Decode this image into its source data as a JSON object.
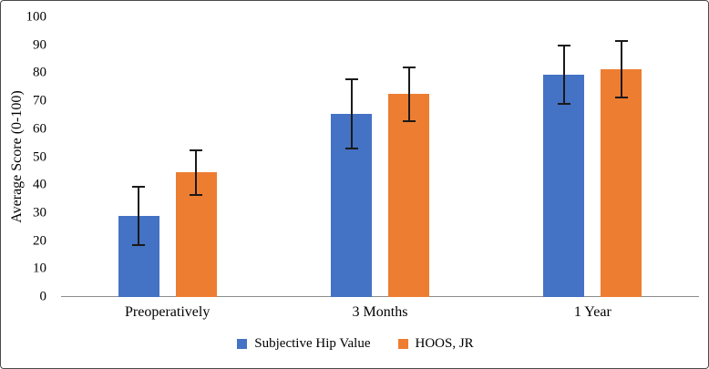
{
  "figure": {
    "background": "#ffffff",
    "border_color": "#4a4a4a"
  },
  "chart_data": {
    "type": "bar",
    "title": "",
    "categories": [
      "Preoperatively",
      "3 Months",
      "1 Year"
    ],
    "series": [
      {
        "name": "Subjective Hip Value",
        "color": "#4472C4",
        "values": [
          29,
          65.5,
          79.5
        ],
        "errors": [
          10.5,
          12.5,
          10.5
        ]
      },
      {
        "name": "HOOS, JR",
        "color": "#ED7D31",
        "values": [
          44.5,
          72.5,
          81.5
        ],
        "errors": [
          8,
          9.5,
          10
        ]
      }
    ],
    "xlabel": "",
    "ylabel": "Average Score (0-100)",
    "ylim": [
      0,
      100
    ],
    "yticks": [
      0,
      10,
      20,
      30,
      40,
      50,
      60,
      70,
      80,
      90,
      100
    ],
    "grid": false,
    "error_bar_color": "#1a1a1a",
    "axis_line_color": "#8c8c8c",
    "legend_position": "bottom"
  }
}
